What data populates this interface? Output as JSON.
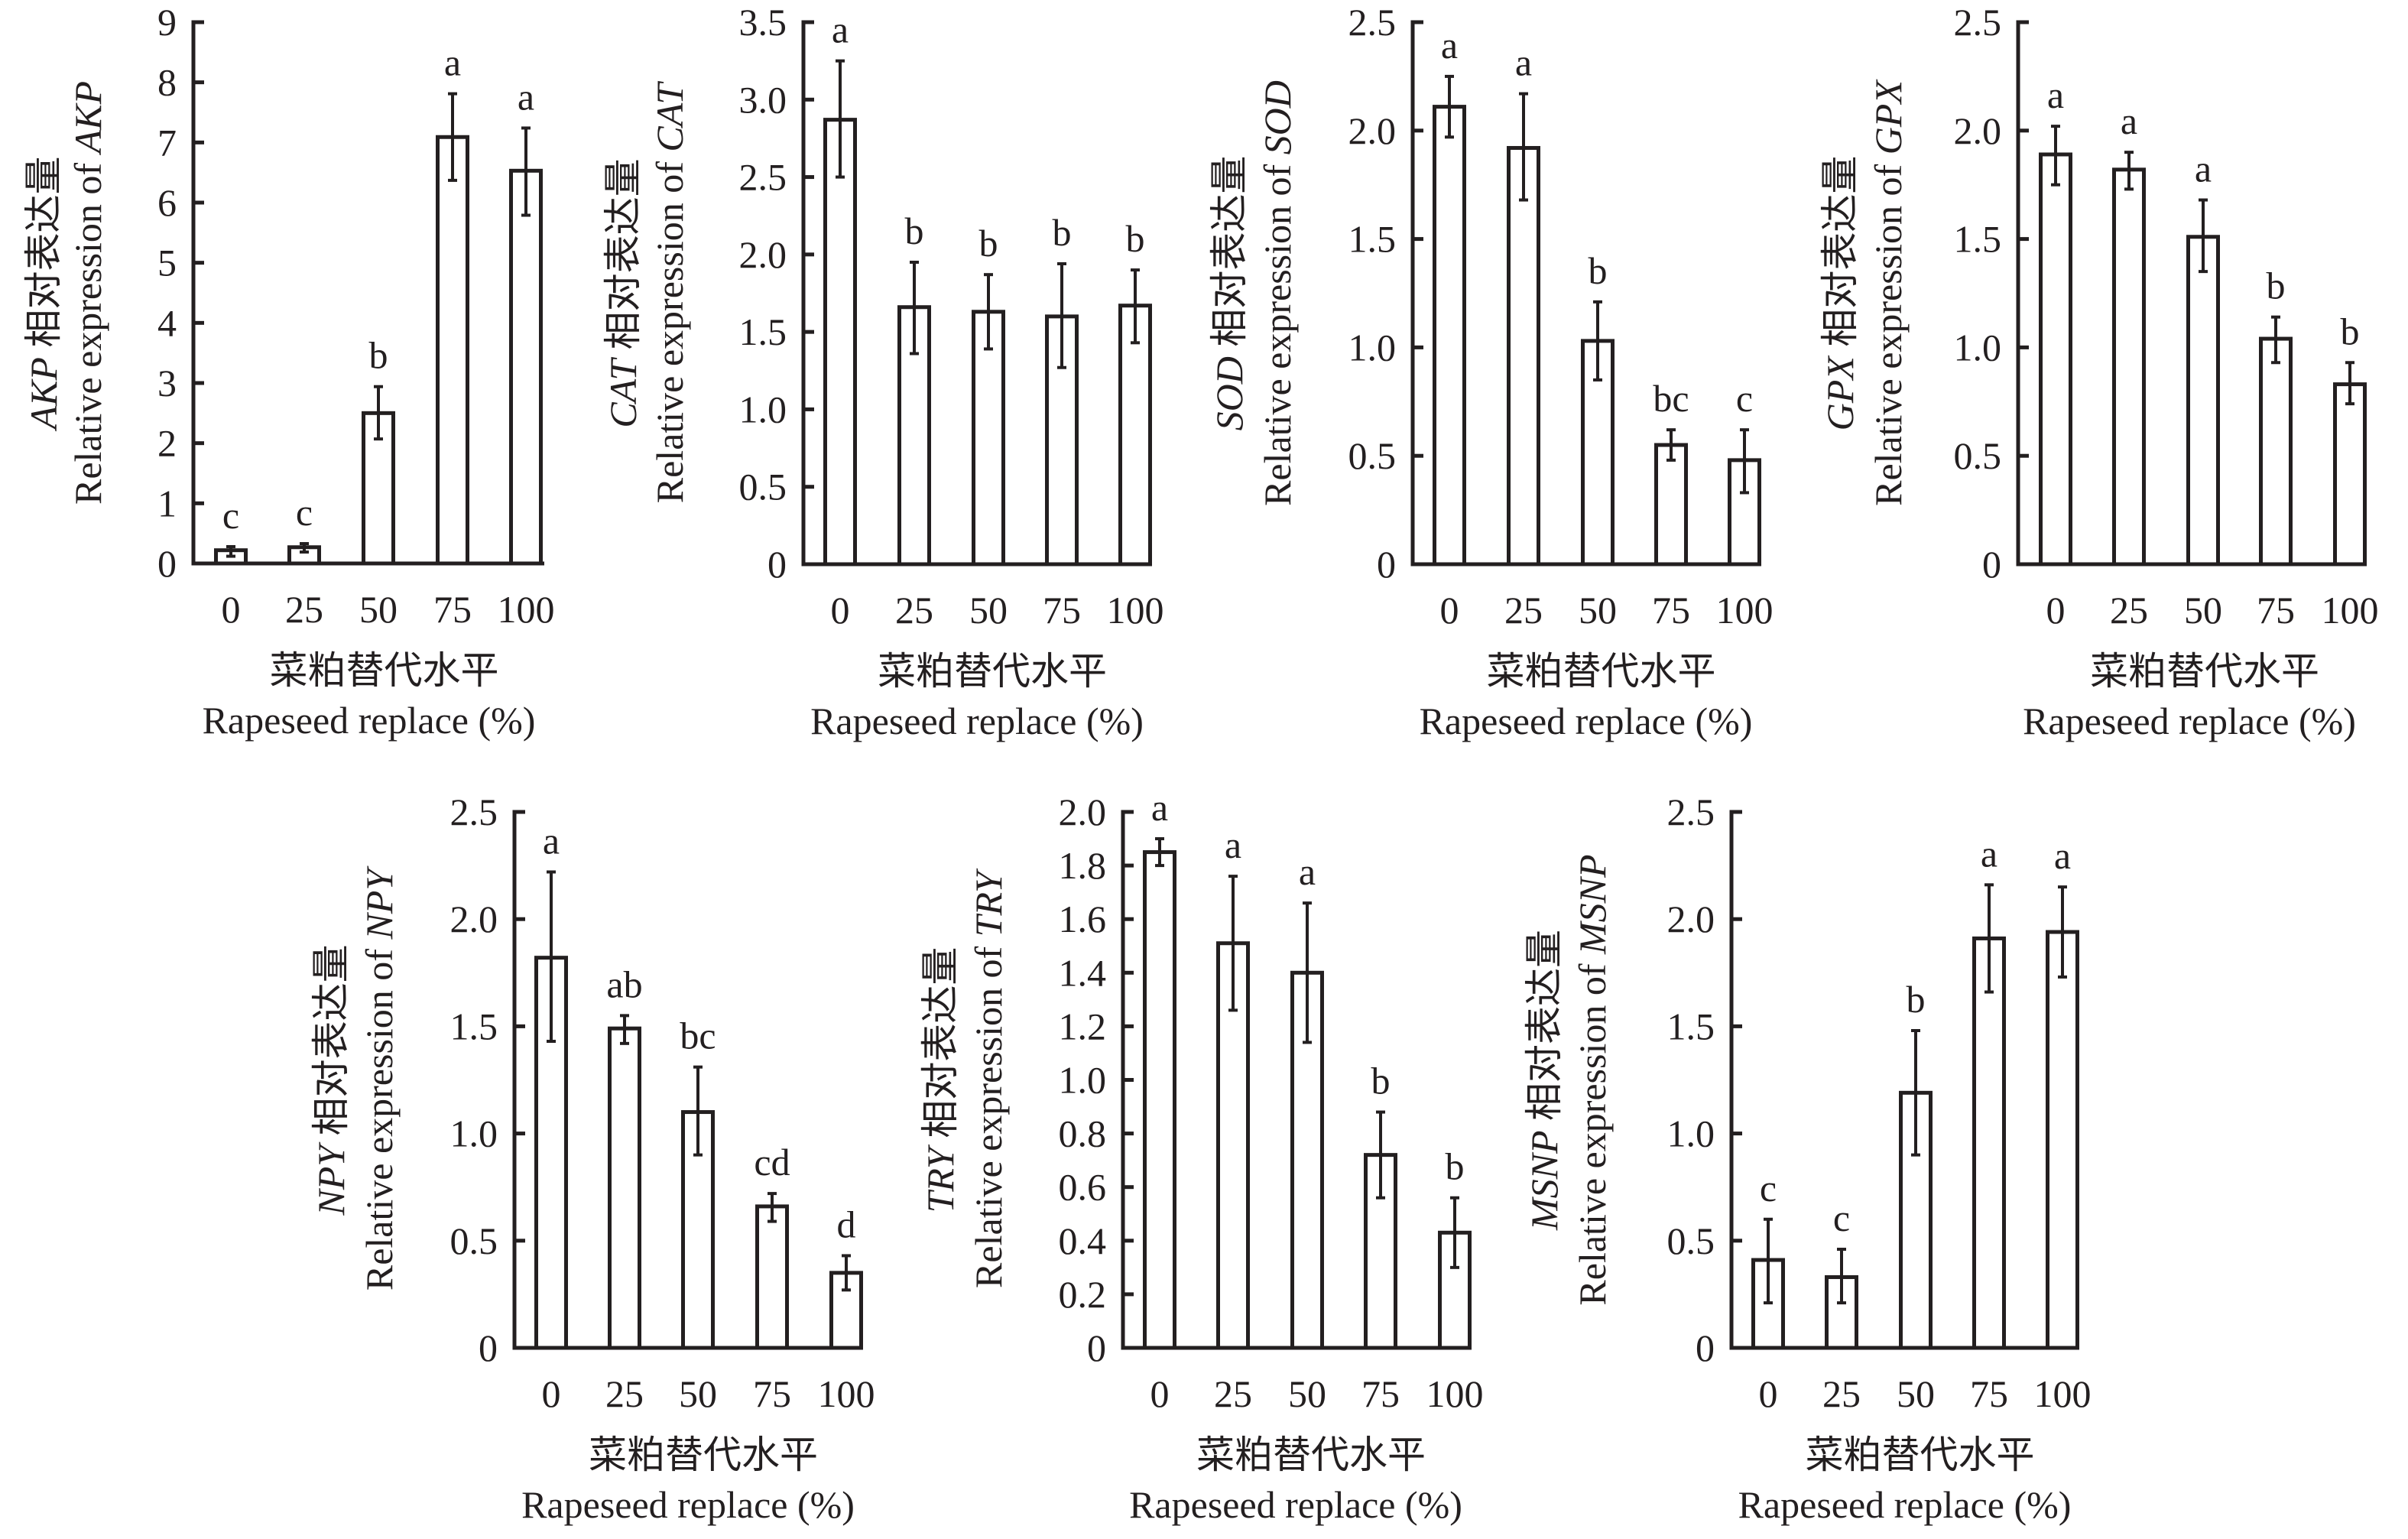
{
  "figure": {
    "xtick_labels": [
      "0",
      "25",
      "50",
      "75",
      "100"
    ],
    "xlabel_cn": "菜粕替代水平",
    "xlabel_en": "Rapeseed replace (%)",
    "ylabel_cn_suffix": "相对表达量",
    "ylabel_en_prefix": "Relative expression of "
  },
  "chart_data": [
    {
      "type": "bar",
      "gene": "AKP",
      "title": "",
      "xlabel": "菜粕替代水平 Rapeseed replace (%)",
      "ylabel": "AKP 相对表达量 Relative expression of AKP",
      "categories": [
        "0",
        "25",
        "50",
        "75",
        "100"
      ],
      "values": [
        0.22,
        0.27,
        2.5,
        7.09,
        6.53
      ],
      "error_upper": [
        0.28,
        0.33,
        2.94,
        7.81,
        7.24
      ],
      "error_lower": [
        0.12,
        0.19,
        2.07,
        6.37,
        5.79
      ],
      "significance": [
        "c",
        "c",
        "b",
        "a",
        "a"
      ],
      "ylim": [
        0,
        9
      ],
      "yticks": [
        "0",
        "1",
        "2",
        "3",
        "4",
        "5",
        "6",
        "7",
        "8",
        "9"
      ],
      "grid": false
    },
    {
      "type": "bar",
      "gene": "CAT",
      "title": "",
      "xlabel": "菜粕替代水平 Rapeseed replace (%)",
      "ylabel": "CAT 相对表达量 Relative expression of CAT",
      "categories": [
        "0",
        "25",
        "50",
        "75",
        "100"
      ],
      "values": [
        2.87,
        1.66,
        1.63,
        1.6,
        1.67
      ],
      "error_upper": [
        3.25,
        1.95,
        1.87,
        1.94,
        1.9
      ],
      "error_lower": [
        2.5,
        1.36,
        1.39,
        1.27,
        1.43
      ],
      "significance": [
        "a",
        "b",
        "b",
        "b",
        "b"
      ],
      "ylim": [
        0,
        3.5
      ],
      "yticks": [
        "0",
        "0.5",
        "1.0",
        "1.5",
        "2.0",
        "2.5",
        "3.0",
        "3.5"
      ],
      "grid": false
    },
    {
      "type": "bar",
      "gene": "SOD",
      "title": "",
      "xlabel": "菜粕替代水平 Rapeseed replace (%)",
      "ylabel": "SOD 相对表达量 Relative expression of SOD",
      "categories": [
        "0",
        "25",
        "50",
        "75",
        "100"
      ],
      "values": [
        2.11,
        1.92,
        1.03,
        0.55,
        0.48
      ],
      "error_upper": [
        2.25,
        2.17,
        1.21,
        0.62,
        0.62
      ],
      "error_lower": [
        1.97,
        1.68,
        0.85,
        0.48,
        0.33
      ],
      "significance": [
        "a",
        "a",
        "b",
        "bc",
        "c"
      ],
      "ylim": [
        0,
        2.5
      ],
      "yticks": [
        "0",
        "0.5",
        "1.0",
        "1.5",
        "2.0",
        "2.5"
      ],
      "grid": false
    },
    {
      "type": "bar",
      "gene": "GPX",
      "title": "",
      "xlabel": "菜粕替代水平 Rapeseed replace (%)",
      "ylabel": "GPX 相对表达量 Relative expression of GPX",
      "categories": [
        "0",
        "25",
        "50",
        "75",
        "100"
      ],
      "values": [
        1.89,
        1.82,
        1.51,
        1.04,
        0.83
      ],
      "error_upper": [
        2.02,
        1.9,
        1.68,
        1.14,
        0.93
      ],
      "error_lower": [
        1.75,
        1.73,
        1.35,
        0.93,
        0.74
      ],
      "significance": [
        "a",
        "a",
        "a",
        "b",
        "b"
      ],
      "ylim": [
        0,
        2.5
      ],
      "yticks": [
        "0",
        "0.5",
        "1.0",
        "1.5",
        "2.0",
        "2.5"
      ],
      "grid": false
    },
    {
      "type": "bar",
      "gene": "NPY",
      "title": "",
      "xlabel": "菜粕替代水平 Rapeseed replace (%)",
      "ylabel": "NPY 相对表达量 Relative expression of NPY",
      "categories": [
        "0",
        "25",
        "50",
        "75",
        "100"
      ],
      "values": [
        1.82,
        1.49,
        1.1,
        0.66,
        0.35
      ],
      "error_upper": [
        2.22,
        1.55,
        1.31,
        0.72,
        0.43
      ],
      "error_lower": [
        1.43,
        1.42,
        0.9,
        0.59,
        0.27
      ],
      "significance": [
        "a",
        "ab",
        "bc",
        "cd",
        "d"
      ],
      "ylim": [
        0,
        2.5
      ],
      "yticks": [
        "0",
        "0.5",
        "1.0",
        "1.5",
        "2.0",
        "2.5"
      ],
      "grid": false
    },
    {
      "type": "bar",
      "gene": "TRY",
      "title": "",
      "xlabel": "菜粕替代水平 Rapeseed replace (%)",
      "ylabel": "TRY 相对表达量 Relative expression of TRY",
      "categories": [
        "0",
        "25",
        "50",
        "75",
        "100"
      ],
      "values": [
        1.85,
        1.51,
        1.4,
        0.72,
        0.43
      ],
      "error_upper": [
        1.9,
        1.76,
        1.66,
        0.88,
        0.56
      ],
      "error_lower": [
        1.8,
        1.26,
        1.14,
        0.56,
        0.3
      ],
      "significance": [
        "a",
        "a",
        "a",
        "b",
        "b"
      ],
      "ylim": [
        0,
        2.0
      ],
      "yticks": [
        "0",
        "0.2",
        "0.4",
        "0.6",
        "0.8",
        "1.0",
        "1.2",
        "1.4",
        "1.6",
        "1.8",
        "2.0"
      ],
      "grid": false
    },
    {
      "type": "bar",
      "gene": "MSNP",
      "title": "",
      "xlabel": "菜粕替代水平 Rapeseed replace (%)",
      "ylabel": "MSNP 相对表达量 Relative expression of MSNP",
      "categories": [
        "0",
        "25",
        "50",
        "75",
        "100"
      ],
      "values": [
        0.41,
        0.33,
        1.19,
        1.91,
        1.94
      ],
      "error_upper": [
        0.6,
        0.46,
        1.48,
        2.16,
        2.15
      ],
      "error_lower": [
        0.21,
        0.21,
        0.9,
        1.66,
        1.73
      ],
      "significance": [
        "c",
        "c",
        "b",
        "a",
        "a"
      ],
      "ylim": [
        0,
        2.5
      ],
      "yticks": [
        "0",
        "0.5",
        "1.0",
        "1.5",
        "2.0",
        "2.5"
      ],
      "grid": false
    }
  ]
}
